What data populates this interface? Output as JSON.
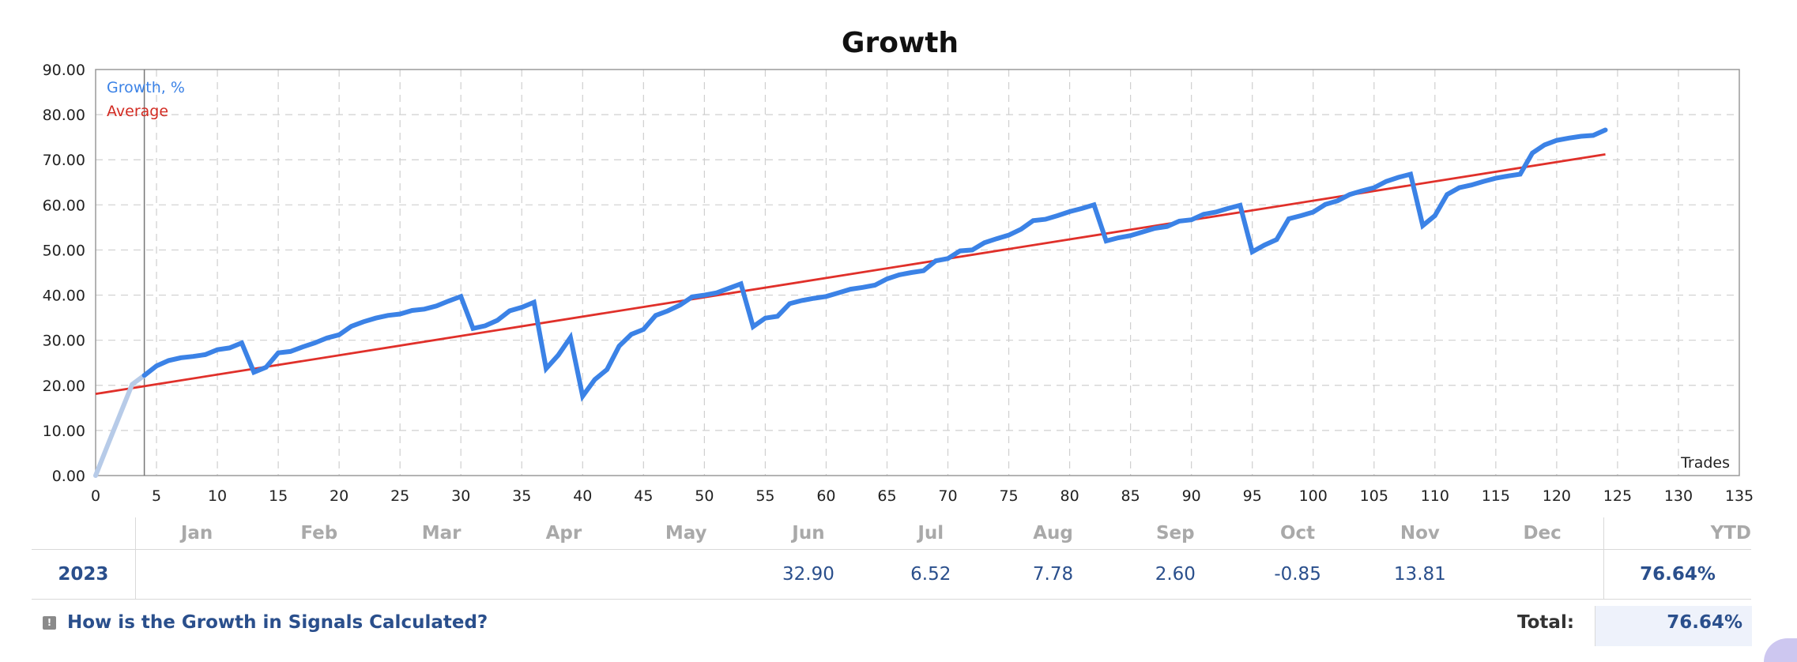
{
  "chart_data": {
    "type": "line",
    "title": "Growth",
    "xlabel": "Trades",
    "ylabel": "",
    "xlim": [
      0,
      135
    ],
    "ylim": [
      0,
      90
    ],
    "x_ticks": [
      0,
      5,
      10,
      15,
      20,
      25,
      30,
      35,
      40,
      45,
      50,
      55,
      60,
      65,
      70,
      75,
      80,
      85,
      90,
      95,
      100,
      105,
      110,
      115,
      120,
      125,
      130,
      135
    ],
    "y_ticks": [
      "0.00",
      "10.00",
      "20.00",
      "30.00",
      "40.00",
      "50.00",
      "60.00",
      "70.00",
      "80.00",
      "90.00"
    ],
    "grid": true,
    "legend_position": "top-left",
    "series": [
      {
        "name": "Growth, %",
        "color": "#3b82e6",
        "pre_marker_color": "#b7cbe8",
        "x": [
          0,
          1,
          2,
          3,
          4,
          5,
          6,
          7,
          8,
          9,
          10,
          11,
          12,
          13,
          14,
          15,
          16,
          17,
          18,
          19,
          20,
          21,
          22,
          23,
          24,
          25,
          26,
          27,
          28,
          29,
          30,
          31,
          32,
          33,
          34,
          35,
          36,
          37,
          38,
          39,
          40,
          41,
          42,
          43,
          44,
          45,
          46,
          47,
          48,
          49,
          50,
          51,
          52,
          53,
          54,
          55,
          56,
          57,
          58,
          59,
          60,
          61,
          62,
          63,
          64,
          65,
          66,
          67,
          68,
          69,
          70,
          71,
          72,
          73,
          74,
          75,
          76,
          77,
          78,
          79,
          80,
          81,
          82,
          83,
          84,
          85,
          86,
          87,
          88,
          89,
          90,
          91,
          92,
          93,
          94,
          95,
          96,
          97,
          98,
          99,
          100,
          101,
          102,
          103,
          104,
          105,
          106,
          107,
          108,
          109,
          110,
          111,
          112,
          113,
          114,
          115,
          116,
          117,
          118,
          119,
          120,
          121,
          122,
          123,
          124
        ],
        "values": [
          0.0,
          6.8,
          13.5,
          20.2,
          22.2,
          24.3,
          25.5,
          26.1,
          26.4,
          26.8,
          27.9,
          28.3,
          29.4,
          22.9,
          24.0,
          27.2,
          27.5,
          28.5,
          29.4,
          30.5,
          31.2,
          33.1,
          34.1,
          34.9,
          35.5,
          35.8,
          36.6,
          36.9,
          37.6,
          38.7,
          39.7,
          32.6,
          33.2,
          34.4,
          36.5,
          37.3,
          38.4,
          23.7,
          26.7,
          30.6,
          17.6,
          21.3,
          23.5,
          28.7,
          31.3,
          32.4,
          35.5,
          36.5,
          37.8,
          39.6,
          40.0,
          40.5,
          41.5,
          42.5,
          33.0,
          34.9,
          35.3,
          38.1,
          38.8,
          39.3,
          39.7,
          40.5,
          41.3,
          41.7,
          42.2,
          43.6,
          44.5,
          45.0,
          45.4,
          47.6,
          48.1,
          49.8,
          50.0,
          51.6,
          52.5,
          53.3,
          54.6,
          56.5,
          56.8,
          57.6,
          58.5,
          59.2,
          60.0,
          52.0,
          52.7,
          53.2,
          54.0,
          54.8,
          55.2,
          56.4,
          56.7,
          57.9,
          58.4,
          59.2,
          59.9,
          49.6,
          51.1,
          52.3,
          56.9,
          57.6,
          58.4,
          60.1,
          60.9,
          62.3,
          63.1,
          63.8,
          65.2,
          66.1,
          66.8,
          55.4,
          57.6,
          62.3,
          63.8,
          64.4,
          65.2,
          65.9,
          66.4,
          66.8,
          71.5,
          73.3,
          74.3,
          74.8,
          75.2,
          75.4,
          76.6
        ]
      },
      {
        "name": "Average",
        "color": "#e0302a",
        "x": [
          0,
          124
        ],
        "values": [
          18.1,
          71.2
        ]
      }
    ],
    "marker_x": 4
  },
  "table": {
    "months": [
      "Jan",
      "Feb",
      "Mar",
      "Apr",
      "May",
      "Jun",
      "Jul",
      "Aug",
      "Sep",
      "Oct",
      "Nov",
      "Dec"
    ],
    "ytd_header": "YTD",
    "rows": [
      {
        "year": "2023",
        "values": [
          "",
          "",
          "",
          "",
          "",
          "32.90",
          "6.52",
          "7.78",
          "2.60",
          "-0.85",
          "13.81",
          ""
        ],
        "ytd": "76.64%"
      }
    ]
  },
  "footer": {
    "calc_link": "How is the Growth in Signals Calculated?",
    "total_label": "Total:",
    "total_value": "76.64%"
  }
}
